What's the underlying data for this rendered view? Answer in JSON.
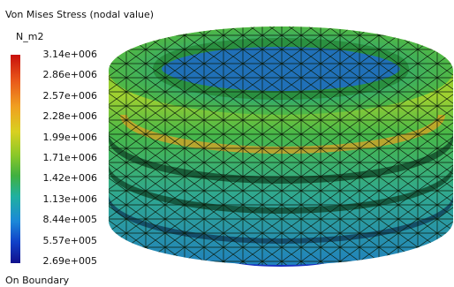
{
  "legend": {
    "title": "Von Mises Stress (nodal value)",
    "unit": "N_m2",
    "labels": [
      "3.14e+006",
      "2.86e+006",
      "2.57e+006",
      "2.28e+006",
      "1.99e+006",
      "1.71e+006",
      "1.42e+006",
      "1.13e+006",
      "8.44e+005",
      "5.57e+005",
      "2.69e+005"
    ],
    "footer": "On Boundary"
  }
}
